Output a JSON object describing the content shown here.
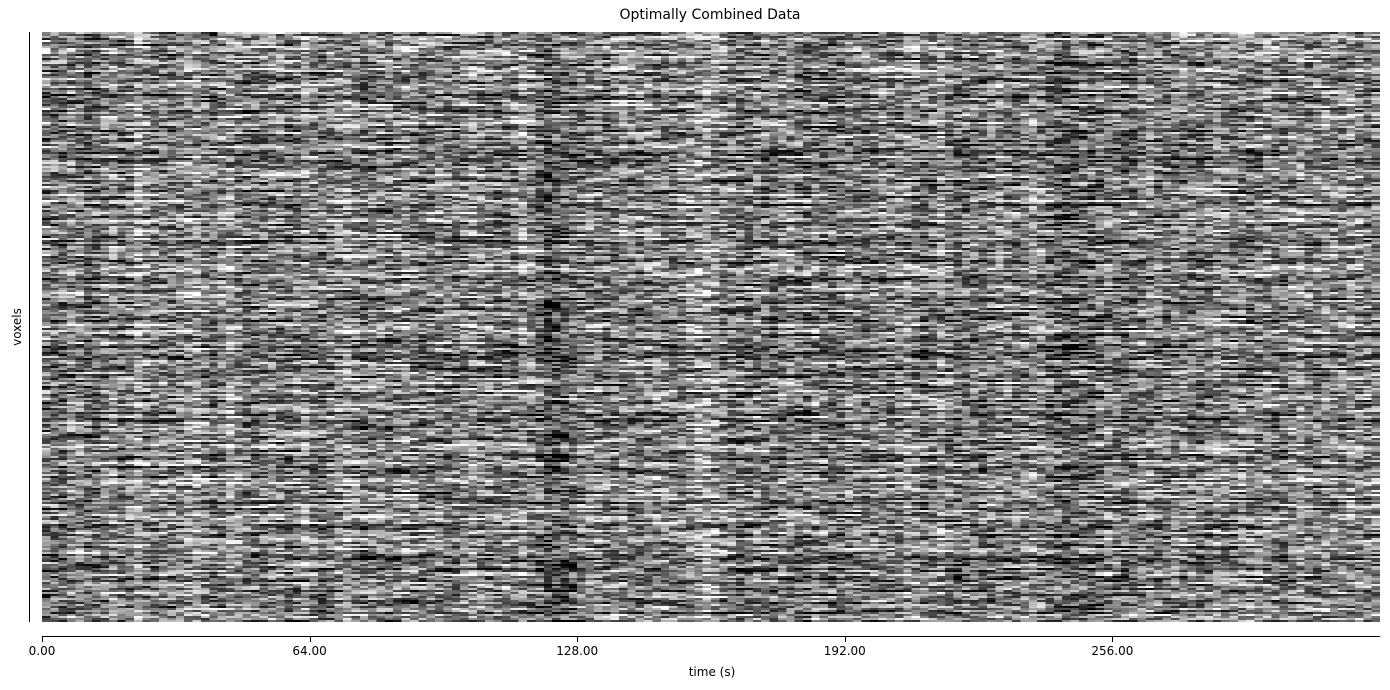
{
  "chart_data": {
    "type": "heatmap",
    "title": "Optimally Combined Data",
    "xlabel": "time (s)",
    "ylabel": "voxels",
    "colormap": "gray",
    "x_ticks": [
      0,
      64,
      128,
      192,
      256
    ],
    "x_tick_labels": [
      "0.00",
      "64.00",
      "128.00",
      "192.00",
      "256.00"
    ],
    "xlim": [
      0,
      320
    ],
    "y_ticks_shown": false,
    "grid": false,
    "num_timepoints": 160,
    "num_voxel_rows": 295,
    "timepoint_brightness_profile": [
      0.5,
      0.45,
      0.42,
      0.5,
      0.48,
      0.4,
      0.42,
      0.5,
      0.55,
      0.45,
      0.5,
      0.62,
      0.5,
      0.45,
      0.48,
      0.46,
      0.5,
      0.55,
      0.6,
      0.52,
      0.45,
      0.5,
      0.58,
      0.5,
      0.45,
      0.44,
      0.48,
      0.52,
      0.5,
      0.46,
      0.5,
      0.58,
      0.5,
      0.45,
      0.47,
      0.52,
      0.56,
      0.5,
      0.45,
      0.5,
      0.52,
      0.48,
      0.5,
      0.55,
      0.5,
      0.46,
      0.5,
      0.52,
      0.48,
      0.45,
      0.5,
      0.55,
      0.5,
      0.48,
      0.45,
      0.5,
      0.5,
      0.58,
      0.5,
      0.42,
      0.32,
      0.35,
      0.38,
      0.4,
      0.45,
      0.5,
      0.52,
      0.48,
      0.5,
      0.55,
      0.5,
      0.48,
      0.5,
      0.52,
      0.5,
      0.48,
      0.5,
      0.55,
      0.6,
      0.62,
      0.58,
      0.52,
      0.5,
      0.46,
      0.45,
      0.5,
      0.48,
      0.45,
      0.5,
      0.52,
      0.45,
      0.42,
      0.5,
      0.45,
      0.42,
      0.44,
      0.5,
      0.48,
      0.45,
      0.5,
      0.52,
      0.48,
      0.5,
      0.55,
      0.5,
      0.46,
      0.5,
      0.6,
      0.5,
      0.45,
      0.48,
      0.5,
      0.46,
      0.5,
      0.52,
      0.48,
      0.45,
      0.5,
      0.55,
      0.5,
      0.42,
      0.38,
      0.35,
      0.38,
      0.42,
      0.4,
      0.45,
      0.5,
      0.46,
      0.42,
      0.45,
      0.5,
      0.52,
      0.48,
      0.45,
      0.5,
      0.52,
      0.5,
      0.48,
      0.5,
      0.55,
      0.5,
      0.48,
      0.52,
      0.5,
      0.55,
      0.58,
      0.52,
      0.5,
      0.55,
      0.6,
      0.52,
      0.5,
      0.55,
      0.52,
      0.5,
      0.55,
      0.52,
      0.5,
      0.52
    ]
  }
}
